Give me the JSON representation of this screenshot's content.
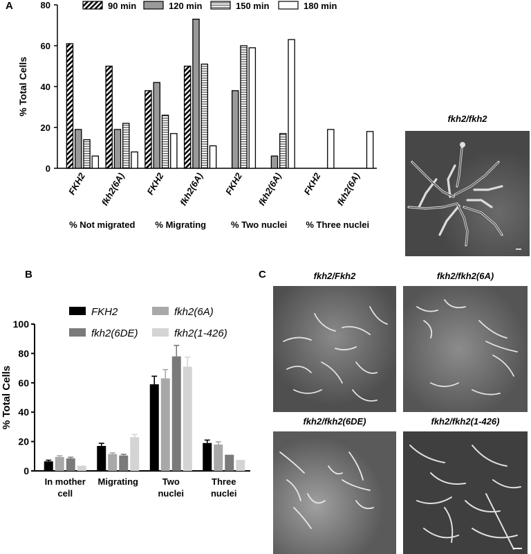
{
  "panels": {
    "a": "A",
    "b": "B",
    "c": "C"
  },
  "micrographs": {
    "single": "fkh2/fkh2",
    "grid": [
      "fkh2/Fkh2",
      "fkh2/fkh2(6A)",
      "fkh2/fkh2(6DE)",
      "fkh2/fkh2(1-426)"
    ]
  },
  "colors": {
    "s90": "#000000",
    "s120": "#9a9a9a",
    "s150": "#ffffff",
    "s180": "#ffffff",
    "b_fkh2": "#000000",
    "b_6a": "#a8a8a8",
    "b_6de": "#7a7a7a",
    "b_1426": "#d4d4d4"
  },
  "chart_data": [
    {
      "type": "bar",
      "ylabel": "% Total Cells",
      "ylim": [
        0,
        80
      ],
      "yticks": [
        "0",
        "20",
        "40",
        "60",
        "80"
      ],
      "legend_position": "top",
      "categories": [
        "FKH2",
        "fkh2(6A)",
        "FKH2",
        "fkh2(6A)",
        "FKH2",
        "fkh2(6A)",
        "FKH2",
        "fkh2(6A)"
      ],
      "groups": [
        "% Not migrated",
        "% Migrating",
        "% Two nuclei",
        "% Three nuclei"
      ],
      "series": [
        {
          "name": "90 min",
          "pattern": "diagonal-hatch",
          "values": [
            61,
            50,
            38,
            50,
            0,
            0,
            0,
            0
          ]
        },
        {
          "name": "120 min",
          "pattern": "gray",
          "values": [
            19,
            19,
            42,
            73,
            38,
            6,
            0,
            0
          ]
        },
        {
          "name": "150 min",
          "pattern": "horizontal-lines",
          "values": [
            14,
            22,
            26,
            51,
            60,
            17,
            0,
            0
          ]
        },
        {
          "name": "180 min",
          "pattern": "white",
          "values": [
            6,
            8,
            17,
            11,
            59,
            63,
            19,
            18
          ]
        }
      ]
    },
    {
      "type": "bar",
      "ylabel": "% Total Cells",
      "ylim": [
        0,
        100
      ],
      "yticks": [
        "0",
        "20",
        "40",
        "60",
        "80",
        "100"
      ],
      "legend_position": "top",
      "categories": [
        "In mother cell",
        "Migrating",
        "Two nuclei",
        "Three nuclei"
      ],
      "series": [
        {
          "name": "FKH2",
          "values": [
            6.5,
            17,
            59,
            19
          ],
          "errors": [
            0.8,
            1.8,
            5.5,
            2
          ]
        },
        {
          "name": "fkh2(6A)",
          "values": [
            9.5,
            11.5,
            63,
            18
          ],
          "errors": [
            0.8,
            0.8,
            6,
            1.8
          ]
        },
        {
          "name": "fkh2(6DE)",
          "values": [
            8.5,
            10.5,
            78,
            11
          ],
          "errors": [
            0.8,
            0.8,
            7.5,
            0
          ]
        },
        {
          "name": "fkh2(1-426)",
          "values": [
            3.5,
            23,
            71,
            7.5
          ],
          "errors": [
            0,
            1.8,
            6.5,
            0
          ]
        }
      ]
    }
  ]
}
